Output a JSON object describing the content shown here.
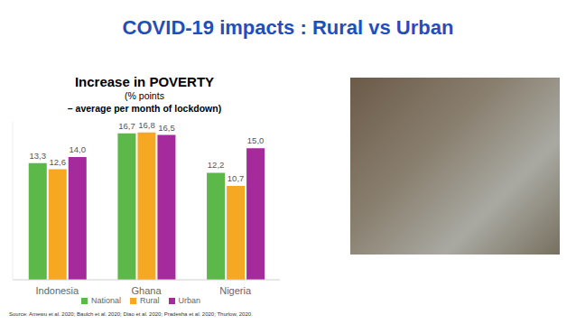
{
  "slide_title": "COVID-19 impacts : Rural vs Urban",
  "source": "Source: Amewu et al. 2020; Baulch et al. 2020; Diao et al. 2020; Pradesha et al. 2020; Thurlow, 2020.",
  "chart_data": {
    "type": "bar",
    "title": "Increase in POVERTY",
    "subtitle": [
      "(% points",
      "– average per month of lockdown)"
    ],
    "categories": [
      "Indonesia",
      "Ghana",
      "Nigeria"
    ],
    "series": [
      {
        "name": "National",
        "color": "#5cb848",
        "values": [
          13.3,
          16.7,
          12.2
        ],
        "value_labels": [
          "13,3",
          "16,7",
          "12,2"
        ]
      },
      {
        "name": "Rural",
        "color": "#f7a823",
        "values": [
          12.6,
          16.8,
          10.7
        ],
        "value_labels": [
          "12,6",
          "16,8",
          "10,7"
        ]
      },
      {
        "name": "Urban",
        "color": "#a52a9c",
        "values": [
          14.0,
          16.5,
          15.0
        ],
        "value_labels": [
          "14,0",
          "16,5",
          "15,0"
        ]
      }
    ],
    "ylim": [
      0,
      18
    ],
    "data_labels": true,
    "legend": "bottom",
    "tick_labels": "x",
    "grid": false
  }
}
